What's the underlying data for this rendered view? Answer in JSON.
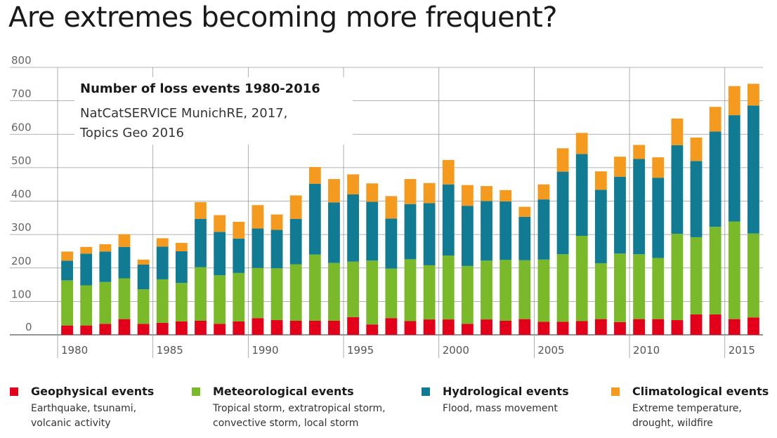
{
  "page": {
    "title": "Are extremes becoming more frequent?"
  },
  "annotation": {
    "title": "Number of loss events 1980-2016",
    "source_line1": "NatCatSERVICE MunichRE, 2017,",
    "source_line2": "Topics Geo 2016"
  },
  "colors": {
    "geophysical": "#e2001a",
    "meteorological": "#7ab929",
    "hydrological": "#127b94",
    "climatological": "#f39a1f"
  },
  "legend": [
    {
      "name": "Geophysical events",
      "desc1": "Earthquake, tsunami,",
      "desc2": "volcanic activity"
    },
    {
      "name": "Meteorological events",
      "desc1": "Tropical storm, extratropical storm,",
      "desc2": "convective storm, local storm"
    },
    {
      "name": "Hydrological events",
      "desc1": "Flood, mass movement",
      "desc2": ""
    },
    {
      "name": "Climatological events",
      "desc1": "Extreme temperature,",
      "desc2": "drought, wildfire"
    }
  ],
  "chart_data": {
    "type": "bar",
    "stacked": true,
    "title": "Are extremes becoming more frequent?",
    "xlabel": "",
    "ylabel": "",
    "ylim": [
      0,
      800
    ],
    "yticks": [
      0,
      100,
      200,
      300,
      400,
      500,
      600,
      700,
      800
    ],
    "xtick_labels": [
      "1980",
      "1985",
      "1990",
      "1995",
      "2000",
      "2005",
      "2010",
      "2015"
    ],
    "grid": true,
    "legend_position": "bottom",
    "x": [
      1980,
      1981,
      1982,
      1983,
      1984,
      1985,
      1986,
      1987,
      1988,
      1989,
      1990,
      1991,
      1992,
      1993,
      1994,
      1995,
      1996,
      1997,
      1998,
      1999,
      2000,
      2001,
      2002,
      2003,
      2004,
      2005,
      2006,
      2007,
      2008,
      2009,
      2010,
      2011,
      2012,
      2013,
      2014,
      2015,
      2016
    ],
    "series": [
      {
        "name": "Geophysical events",
        "values": [
          28,
          28,
          33,
          47,
          33,
          36,
          40,
          42,
          33,
          40,
          50,
          44,
          42,
          42,
          42,
          53,
          31,
          50,
          41,
          46,
          46,
          33,
          46,
          42,
          47,
          39,
          39,
          41,
          47,
          38,
          47,
          47,
          44,
          61,
          61,
          47,
          52
        ]
      },
      {
        "name": "Meteorological events",
        "values": [
          135,
          120,
          125,
          122,
          103,
          130,
          115,
          160,
          145,
          145,
          150,
          155,
          169,
          198,
          173,
          166,
          191,
          148,
          185,
          162,
          191,
          173,
          176,
          182,
          176,
          186,
          202,
          255,
          167,
          205,
          194,
          183,
          258,
          231,
          262,
          292,
          251
        ]
      },
      {
        "name": "Hydrological events",
        "values": [
          59,
          95,
          91,
          94,
          74,
          98,
          95,
          145,
          130,
          103,
          118,
          115,
          136,
          212,
          181,
          201,
          176,
          150,
          165,
          186,
          213,
          180,
          178,
          175,
          130,
          180,
          247,
          245,
          220,
          230,
          285,
          240,
          265,
          228,
          285,
          318,
          383
        ]
      },
      {
        "name": "Climatological events",
        "values": [
          27,
          20,
          22,
          38,
          15,
          25,
          25,
          50,
          50,
          50,
          70,
          46,
          70,
          50,
          70,
          60,
          55,
          67,
          75,
          60,
          73,
          62,
          45,
          34,
          30,
          45,
          70,
          63,
          55,
          60,
          42,
          61,
          80,
          70,
          74,
          87,
          65
        ]
      }
    ]
  }
}
